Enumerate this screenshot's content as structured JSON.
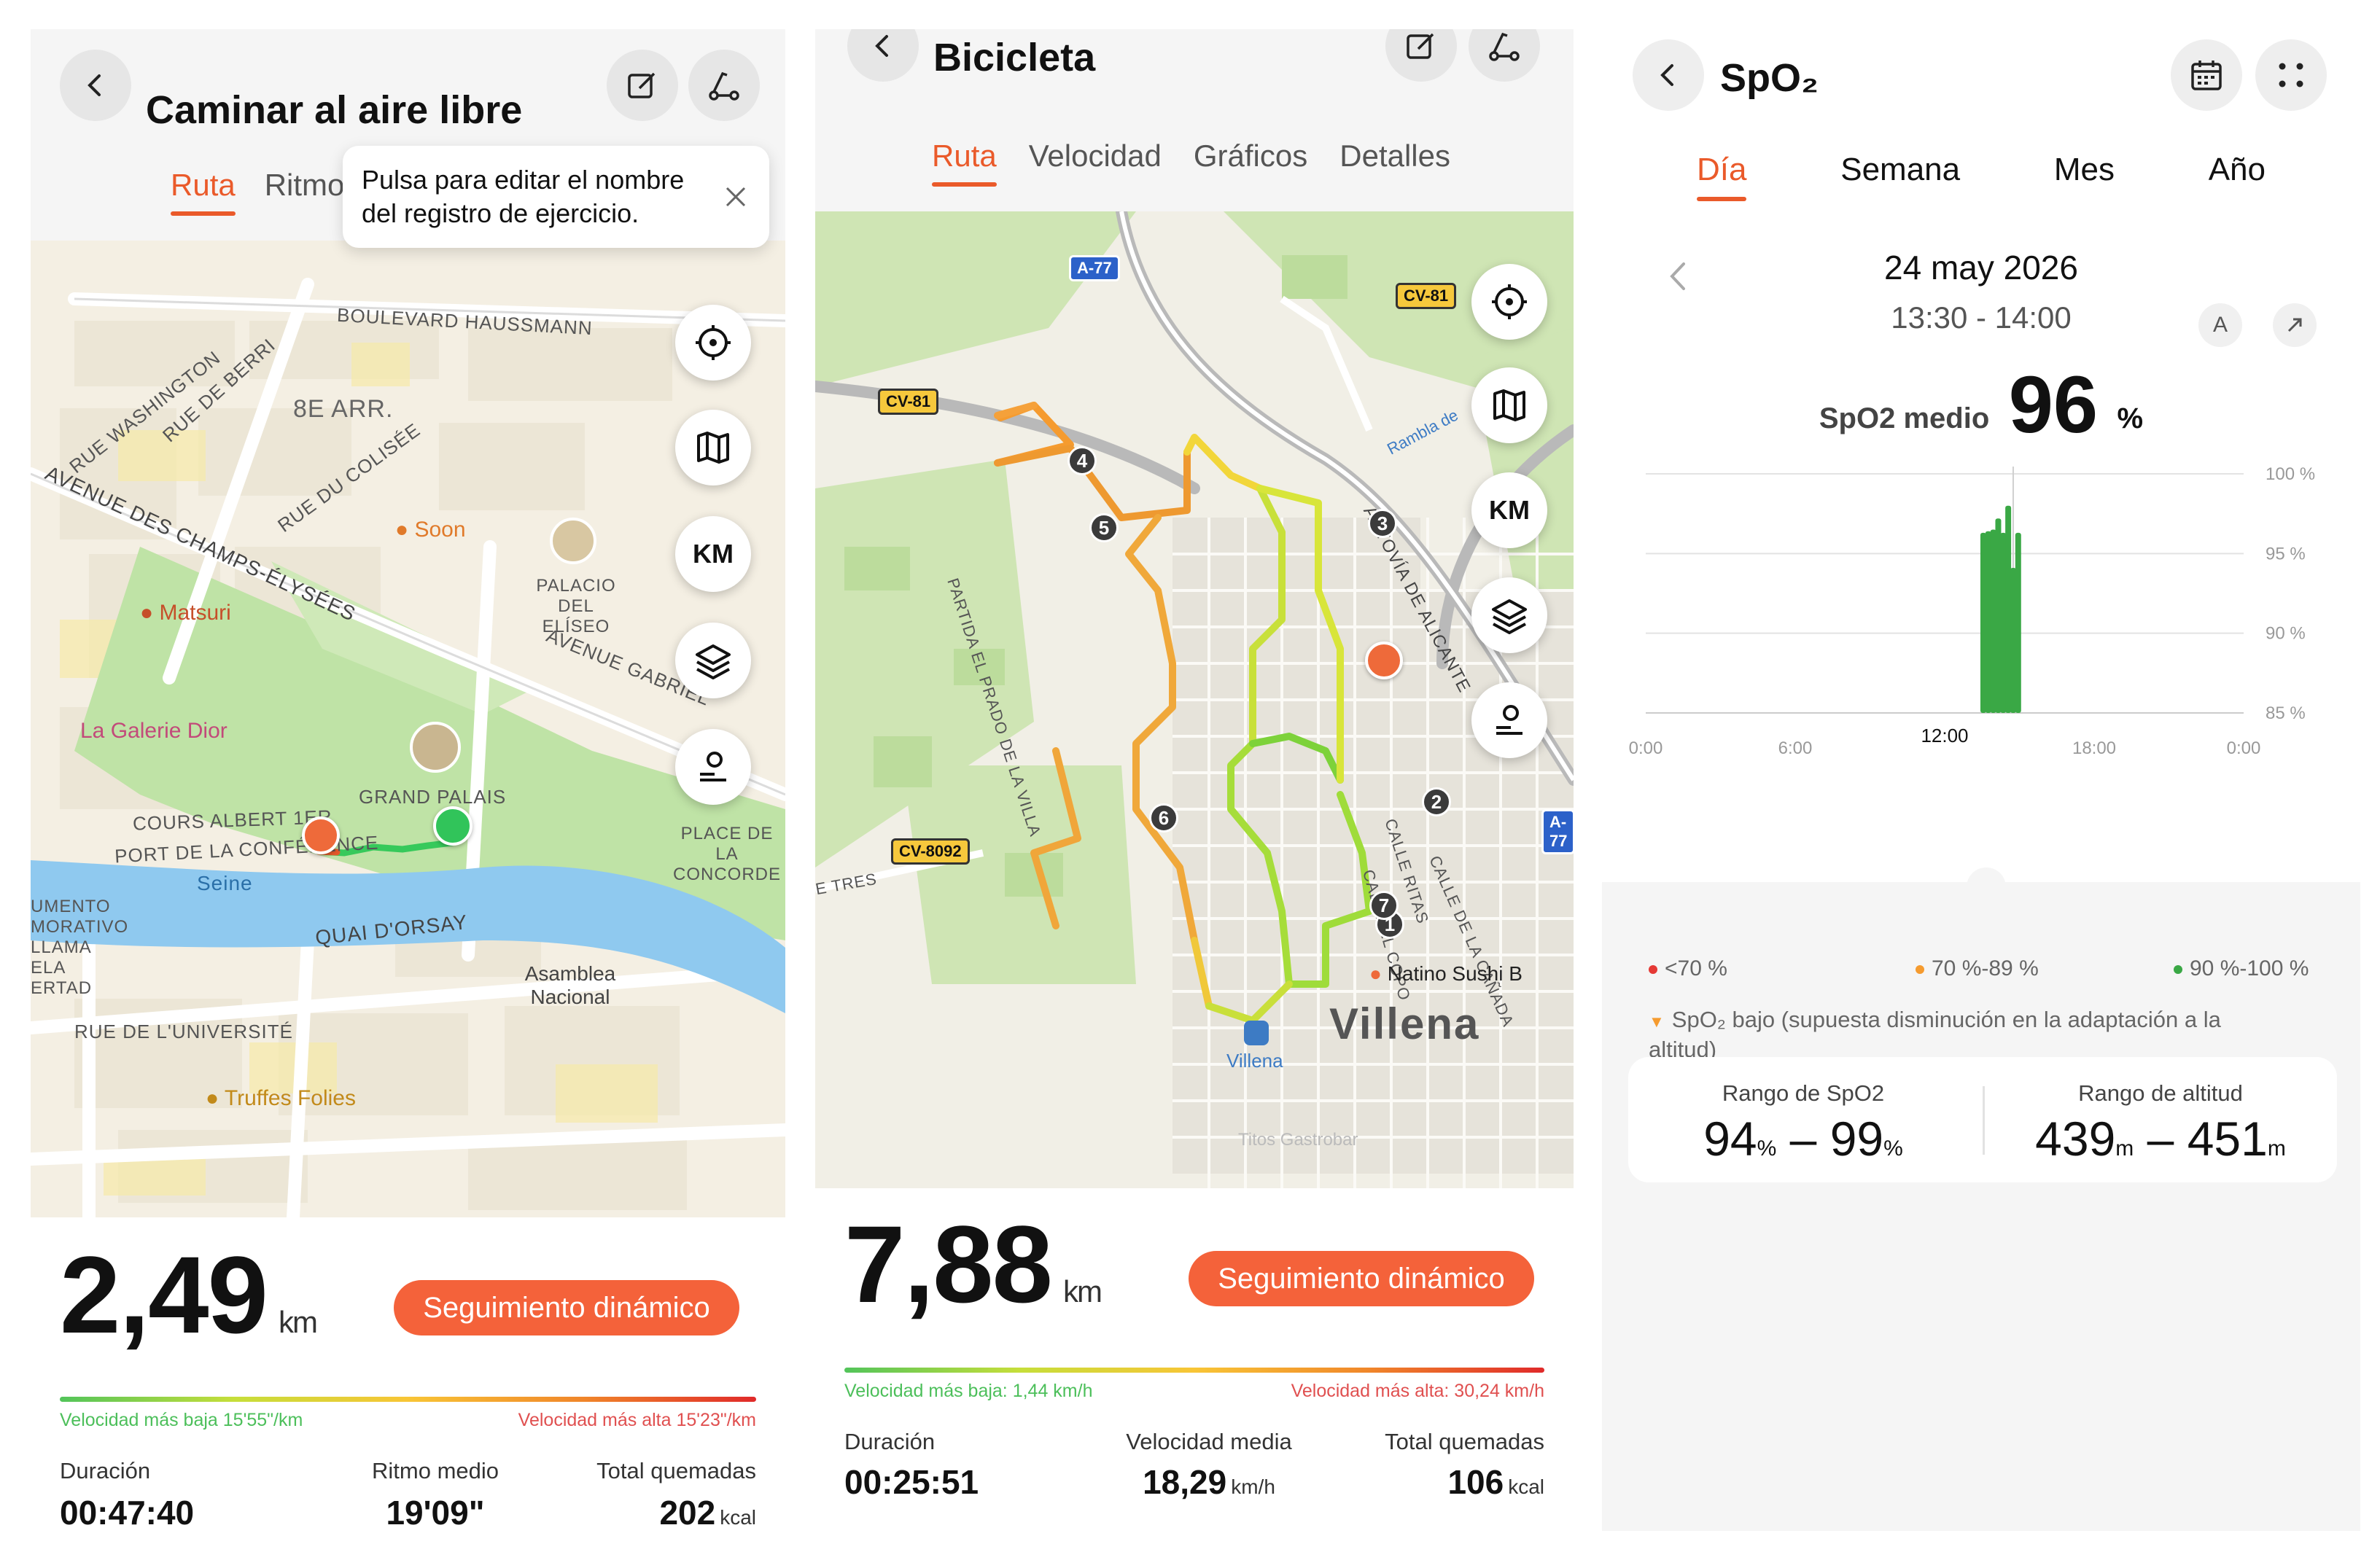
{
  "walk": {
    "title": "Caminar al aire libre",
    "tabs": [
      "Ruta",
      "Ritmo"
    ],
    "tooltip": "Pulsa para editar el nombre del registro de ejercicio.",
    "map_labels": {
      "haussmann": "BOULEVARD HAUSSMANN",
      "arr": "8E ARR.",
      "washington": "RUE WASHINGTON",
      "berri": "RUE DE BERRI",
      "colisee": "RUE DU COLISÉE",
      "champs": "AVENUE DES CHAMPS-ÉLYSÉES",
      "soon": "Soon",
      "matsuri": "Matsuri",
      "elysee": "PALACIO DEL ELÍSEO",
      "gabriel": "AVENUE GABRIEL",
      "dior": "La Galerie Dior",
      "grand_palais": "GRAND PALAIS",
      "cours": "COURS ALBERT 1ER",
      "port": "PORT DE LA CONFÉRENCE",
      "seine": "Seine",
      "concorde": "PLACE DE LA CONCORDE",
      "orsay": "QUAI D'ORSAY",
      "asamblea": "Asamblea Nacional",
      "universite": "RUE DE L'UNIVERSITÉ",
      "truffes": "Truffes Folies",
      "monumento": "UMENTO MORATIVO LLAMA ELA ERTAD",
      "km": "KM"
    },
    "distance": "2,49",
    "distance_unit": "km",
    "dynamic_button": "Seguimiento dinámico",
    "speed_low": "Velocidad más baja 15'55\"/km",
    "speed_high": "Velocidad más alta 15'23\"/km",
    "stats": [
      {
        "label": "Duración",
        "value": "00:47:40",
        "unit": ""
      },
      {
        "label": "Ritmo medio",
        "value": "19'09\"",
        "unit": ""
      },
      {
        "label": "Total quemadas",
        "value": "202",
        "unit": "kcal"
      }
    ]
  },
  "bike": {
    "title": "Bicicleta",
    "tabs": [
      "Ruta",
      "Velocidad",
      "Gráficos",
      "Detalles"
    ],
    "map_labels": {
      "a77": "A-77",
      "cv81": "CV-81",
      "cv81b": "CV-81",
      "cv8092": "CV-8092",
      "prado": "PARTIDA EL PRADO DE LA VILLA",
      "autovia": "AUTOVÍA DE ALICANTE",
      "rambla": "Rambla de",
      "canada": "CALLE DE LA CAÑADA",
      "ritas": "CALLE RITAS",
      "copo": "CALLE EL COPO",
      "tres": "E TRES",
      "natino": "Natino Sushi B",
      "villena": "Villena",
      "villena_station": "Villena",
      "titos": "Titos Gastrobar",
      "a77b": "A-77",
      "km": "KM"
    },
    "markers": [
      "1",
      "2",
      "3",
      "4",
      "5",
      "6",
      "7"
    ],
    "distance": "7,88",
    "distance_unit": "km",
    "dynamic_button": "Seguimiento dinámico",
    "speed_low": "Velocidad más baja: 1,44 km/h",
    "speed_high": "Velocidad más alta: 30,24 km/h",
    "stats": [
      {
        "label": "Duración",
        "value": "00:25:51",
        "unit": ""
      },
      {
        "label": "Velocidad media",
        "value": "18,29",
        "unit": "km/h"
      },
      {
        "label": "Total quemadas",
        "value": "106",
        "unit": "kcal"
      }
    ]
  },
  "spo2": {
    "title": "SpO₂",
    "tabs": [
      "Día",
      "Semana",
      "Mes",
      "Año"
    ],
    "date": "24 may 2026",
    "time_range": "13:30 - 14:00",
    "avg_label": "SpO2 medio",
    "avg_value": "96",
    "avg_unit": "%",
    "legend": [
      {
        "label": "<70 %",
        "color": "#e53935"
      },
      {
        "label": "70 %-89 %",
        "color": "#f59b2f"
      },
      {
        "label": "90 %-100 %",
        "color": "#3aa845"
      }
    ],
    "note": "SpO₂ bajo (supuesta disminución en la adaptación a la altitud)",
    "range_label": "Rango de SpO2",
    "range_low": "94",
    "range_high": "99",
    "range_unit": "%",
    "alt_label": "Rango de altitud",
    "alt_low": "439",
    "alt_high": "451",
    "alt_unit": "m",
    "highlight_tick": "12:00"
  },
  "chart_data": {
    "type": "bar",
    "title": "",
    "xlabel": "",
    "ylabel": "",
    "x_ticks": [
      "0:00",
      "6:00",
      "12:00",
      "18:00",
      "0:00"
    ],
    "y_ticks": [
      "100 %",
      "95 %",
      "90 %",
      "85 %"
    ],
    "ylim": [
      85,
      100
    ],
    "x_unit": "hours",
    "xlim": [
      0,
      24
    ],
    "x": [
      13.55,
      13.75,
      13.95,
      14.15,
      14.35,
      14.55,
      14.75,
      14.95
    ],
    "values": [
      96.3,
      96.4,
      96.5,
      97.2,
      96.3,
      98.0,
      94.1,
      96.3
    ],
    "bar_color": "#3aa845",
    "grid": true
  }
}
